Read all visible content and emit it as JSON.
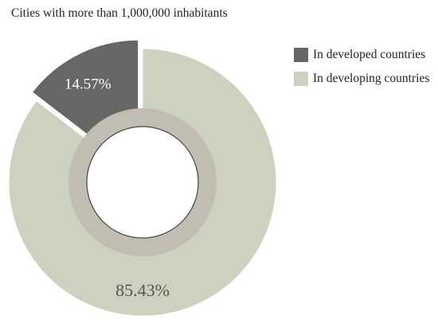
{
  "chart_data": {
    "type": "pie",
    "title": "Cities with more than 1,000,000 inhabitants",
    "categories": [
      "In developed countries",
      "In developing countries"
    ],
    "values": [
      14.57,
      85.43
    ],
    "data_labels": [
      "14.57%",
      "85.43%"
    ],
    "colors": [
      "#666666",
      "#cdd2c0"
    ],
    "label_colors": [
      "#ffffff",
      "#555555"
    ],
    "legend_position": "top-right"
  }
}
